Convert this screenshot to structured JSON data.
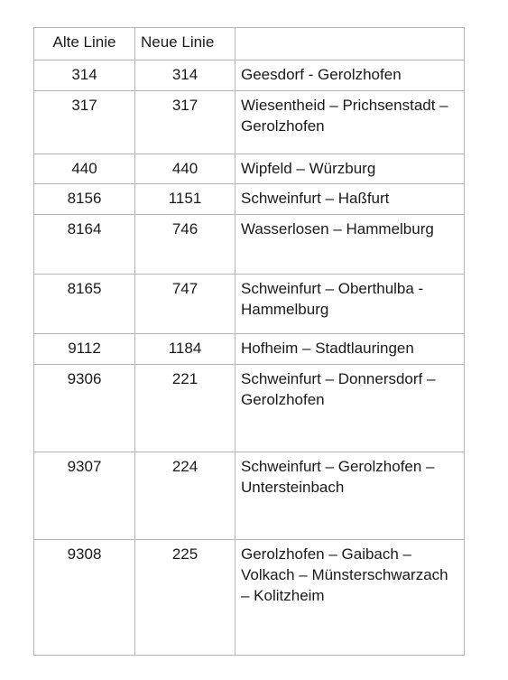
{
  "table": {
    "header": {
      "alt": "Alte Linie",
      "neu": "Neue Linie",
      "route": ""
    },
    "rows": [
      {
        "alt": "314",
        "neu": "314",
        "route": "Geesdorf - Gerolzhofen"
      },
      {
        "alt": "317",
        "neu": "317",
        "route": "Wiesentheid – Prichsenstadt – Gerolzhofen"
      },
      {
        "alt": "440",
        "neu": "440",
        "route": "Wipfeld – Würzburg"
      },
      {
        "alt": "8156",
        "neu": "1151",
        "route": "Schweinfurt – Haßfurt"
      },
      {
        "alt": "8164",
        "neu": "746",
        "route": "Wasserlosen – Hammelburg"
      },
      {
        "alt": "8165",
        "neu": "747",
        "route": "Schweinfurt – Oberthulba - Hammelburg"
      },
      {
        "alt": "9112",
        "neu": "1184",
        "route": "Hofheim – Stadtlauringen"
      },
      {
        "alt": "9306",
        "neu": "221",
        "route": "Schweinfurt – Donnersdorf – Gerolzhofen"
      },
      {
        "alt": "9307",
        "neu": "224",
        "route": "Schweinfurt – Gerolzhofen – Untersteinbach"
      },
      {
        "alt": "9308",
        "neu": "225",
        "route": "Gerolzhofen – Gaibach – Volkach – Münsterschwarzach – Kolitzheim"
      }
    ]
  }
}
